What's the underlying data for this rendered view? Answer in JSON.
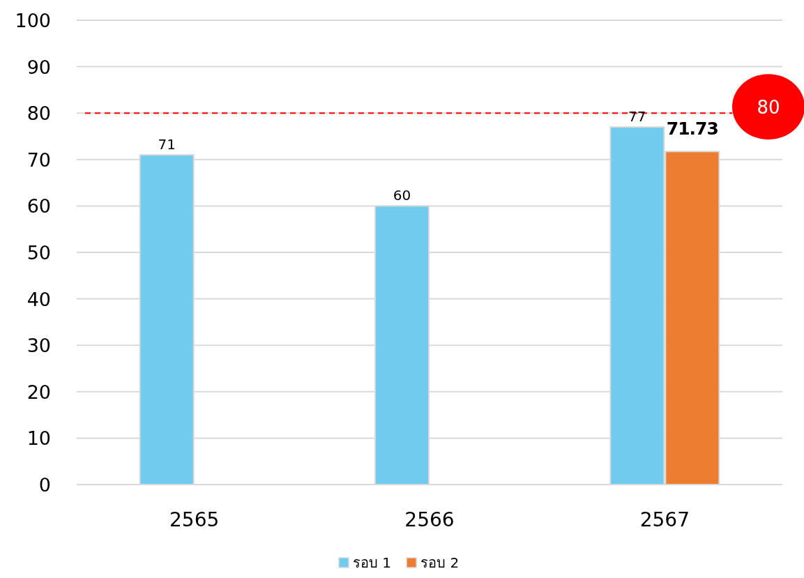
{
  "chart_data": {
    "type": "bar",
    "categories": [
      "2565",
      "2566",
      "2567"
    ],
    "series": [
      {
        "name": "รอบ 1",
        "color": "#70cbee",
        "values": [
          71,
          60,
          77
        ]
      },
      {
        "name": "รอบ 2",
        "color": "#ed7d31",
        "values": [
          null,
          null,
          71.73
        ]
      }
    ],
    "ylim": [
      0,
      100
    ],
    "yticks": [
      0,
      10,
      20,
      30,
      40,
      50,
      60,
      70,
      80,
      90,
      100
    ],
    "grid": "y",
    "legend": "bottom",
    "data_labels": true,
    "ref_lines": [
      {
        "axis": "y",
        "value": 80,
        "label": "80",
        "color": "#ff0000",
        "line_style": "dashed"
      }
    ]
  }
}
